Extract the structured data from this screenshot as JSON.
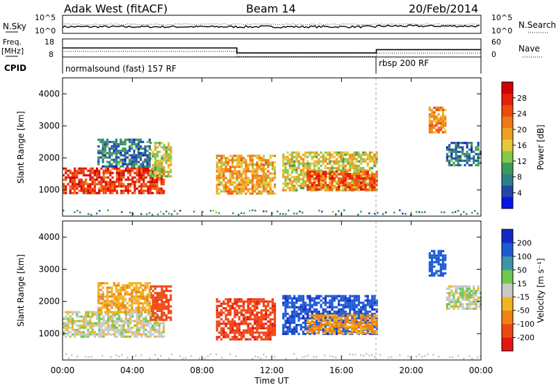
{
  "header": {
    "station": "Adak West (fitACF)",
    "beam": "Beam 14",
    "date": "20/Feb/2014"
  },
  "noise_panel": {
    "left_label": "N.Sky",
    "right_label": "N.Search",
    "left_ticks": [
      "10^5",
      "10^0"
    ],
    "right_ticks": [
      "10^5",
      "10^0"
    ]
  },
  "freq_panel": {
    "left_label_line1": "Freq.",
    "left_label_line2": "[MHz]",
    "right_label": "Nave",
    "left_ticks": [
      "18",
      "8"
    ],
    "right_ticks": [
      "60",
      "0"
    ]
  },
  "cpid_panel": {
    "label": "CPID",
    "programs": [
      {
        "name": "normalsound (fast) 157 RF",
        "start_hour": 0
      },
      {
        "name": "rbsp 200 RF",
        "start_hour": 18
      }
    ]
  },
  "axes": {
    "xlabel": "Time UT",
    "xticks": [
      "00:00",
      "04:00",
      "08:00",
      "12:00",
      "16:00",
      "20:00",
      "00:00"
    ],
    "ylabel": "Slant Range [km]",
    "yticks": [
      "1000",
      "2000",
      "3000",
      "4000"
    ]
  },
  "colorbars": {
    "power": {
      "label": "Power [dB]",
      "ticks": [
        "4",
        "8",
        "12",
        "16",
        "20",
        "24",
        "28"
      ],
      "colors": [
        "#0a14e6",
        "#2346a8",
        "#2e7f8a",
        "#3c9a5a",
        "#82c84b",
        "#e6c83c",
        "#f0a020",
        "#f07814",
        "#f04a0a",
        "#e61e0a",
        "#d20000"
      ]
    },
    "velocity": {
      "label": "Velocity [m s⁻¹]",
      "ticks": [
        "200",
        "100",
        "50",
        "15",
        "-15",
        "-50",
        "-100",
        "-200"
      ],
      "colors": [
        "#1428c8",
        "#1e5ad2",
        "#3c96aa",
        "#6ec850",
        "#c8c8c8",
        "#f0b41e",
        "#f08214",
        "#f04614",
        "#e61414"
      ]
    }
  },
  "chart_data": {
    "type": "heatmap",
    "time_range_hours": [
      0,
      24
    ],
    "slant_range_km": [
      180,
      4500
    ],
    "echo_regions": [
      {
        "start_hour": 0.0,
        "end_hour": 5.8,
        "range_lo_km": 900,
        "range_hi_km": 1700,
        "power_db": 26,
        "velocity": 0
      },
      {
        "start_hour": 5.0,
        "end_hour": 6.2,
        "range_lo_km": 1400,
        "range_hi_km": 2500,
        "power_db": 14,
        "velocity": -150
      },
      {
        "start_hour": 2.0,
        "end_hour": 5.0,
        "range_lo_km": 1700,
        "range_hi_km": 2600,
        "power_db": 6,
        "velocity": -40
      },
      {
        "start_hour": 8.8,
        "end_hour": 12.2,
        "range_lo_km": 850,
        "range_hi_km": 2100,
        "power_db": 18,
        "velocity": -180
      },
      {
        "start_hour": 12.6,
        "end_hour": 18.0,
        "range_lo_km": 1000,
        "range_hi_km": 2200,
        "power_db": 15,
        "velocity": 180
      },
      {
        "start_hour": 14.0,
        "end_hour": 18.0,
        "range_lo_km": 1000,
        "range_hi_km": 1600,
        "power_db": 24,
        "velocity": -60
      },
      {
        "start_hour": 21.0,
        "end_hour": 22.0,
        "range_lo_km": 2800,
        "range_hi_km": 3600,
        "power_db": 20,
        "velocity": 150
      },
      {
        "start_hour": 22.0,
        "end_hour": 24.0,
        "range_lo_km": 1800,
        "range_hi_km": 2500,
        "power_db": 6,
        "velocity": 5
      }
    ],
    "frequency_mhz": [
      {
        "start_hour": 0,
        "end_hour": 10,
        "value": 13
      },
      {
        "start_hour": 10,
        "end_hour": 18,
        "value": 10
      },
      {
        "start_hour": 18,
        "end_hour": 24,
        "value": 12
      }
    ]
  }
}
